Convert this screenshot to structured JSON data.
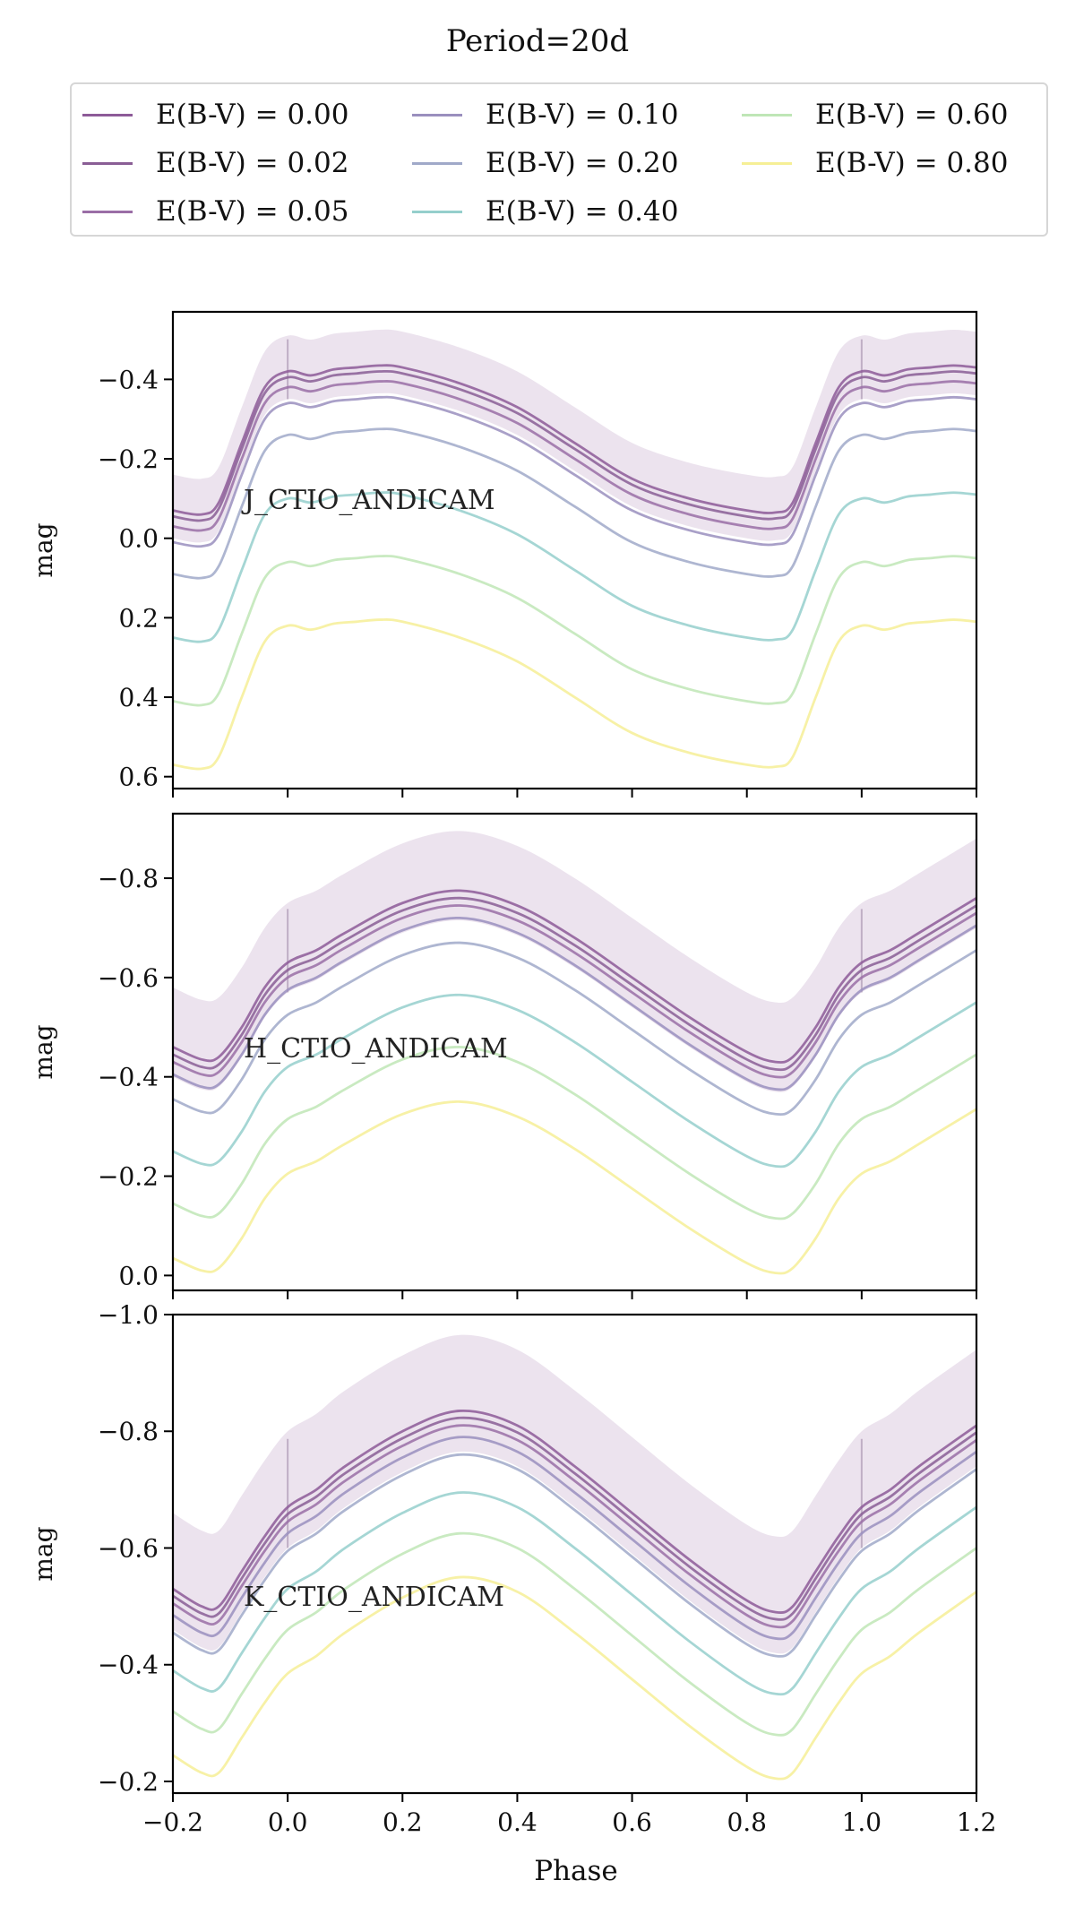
{
  "figure": {
    "title": "Period=20d",
    "xlabel": "Phase"
  },
  "legend": [
    {
      "label": "E(B-V) = 0.00",
      "color": "#8d5b98"
    },
    {
      "label": "E(B-V) = 0.02",
      "color": "#8a5e95"
    },
    {
      "label": "E(B-V) = 0.05",
      "color": "#9a6ea6"
    },
    {
      "label": "E(B-V) = 0.10",
      "color": "#9a8fbe"
    },
    {
      "label": "E(B-V) = 0.20",
      "color": "#a0a9c9"
    },
    {
      "label": "E(B-V) = 0.40",
      "color": "#95cfcc"
    },
    {
      "label": "E(B-V) = 0.60",
      "color": "#bfe6b6"
    },
    {
      "label": "E(B-V) = 0.80",
      "color": "#f6ef96"
    }
  ],
  "chart_data": [
    {
      "type": "line",
      "title": "J_CTIO_ANDICAM",
      "xlabel": "Phase",
      "ylabel": "mag",
      "xlim": [
        -0.2,
        1.2
      ],
      "ylim": [
        0.63,
        -0.57
      ],
      "yticks": [
        -0.4,
        -0.2,
        0.0,
        0.2,
        0.4,
        0.6
      ],
      "ytick_labels": [
        "−0.4",
        "−0.2",
        "0.0",
        "0.2",
        "0.4",
        "0.6"
      ],
      "base_curve": {
        "x": [
          -0.2,
          -0.15,
          -0.12,
          -0.08,
          -0.04,
          0.0,
          0.04,
          0.08,
          0.12,
          0.16,
          0.2,
          0.3,
          0.4,
          0.5,
          0.6,
          0.7,
          0.8,
          0.85,
          0.88,
          0.92,
          0.96,
          1.0,
          1.04,
          1.08,
          1.12,
          1.16,
          1.2
        ],
        "y": [
          -0.07,
          -0.06,
          -0.09,
          -0.24,
          -0.38,
          -0.42,
          -0.41,
          -0.425,
          -0.43,
          -0.435,
          -0.43,
          -0.39,
          -0.33,
          -0.24,
          -0.15,
          -0.1,
          -0.07,
          -0.065,
          -0.09,
          -0.24,
          -0.38,
          -0.42,
          -0.41,
          -0.425,
          -0.43,
          -0.435,
          -0.43
        ]
      },
      "offsets": [
        0.0,
        0.015,
        0.04,
        0.08,
        0.16,
        0.32,
        0.48,
        0.64
      ],
      "band": {
        "upper_offset": -0.09,
        "lower_offset": 0.07
      }
    },
    {
      "type": "line",
      "title": "H_CTIO_ANDICAM",
      "xlabel": "Phase",
      "ylabel": "mag",
      "xlim": [
        -0.2,
        1.2
      ],
      "ylim": [
        0.03,
        -0.93
      ],
      "yticks": [
        -0.8,
        -0.6,
        -0.4,
        -0.2,
        0.0
      ],
      "ytick_labels": [
        "−0.8",
        "−0.6",
        "−0.4",
        "−0.2",
        "0.0"
      ],
      "base_curve": {
        "x": [
          -0.2,
          -0.15,
          -0.12,
          -0.08,
          -0.04,
          0.0,
          0.05,
          0.1,
          0.2,
          0.3,
          0.4,
          0.5,
          0.6,
          0.7,
          0.8,
          0.85,
          0.88,
          0.92,
          0.96,
          1.0,
          1.05,
          1.1,
          1.2
        ],
        "y": [
          -0.46,
          -0.435,
          -0.44,
          -0.5,
          -0.58,
          -0.63,
          -0.655,
          -0.69,
          -0.75,
          -0.775,
          -0.745,
          -0.68,
          -0.6,
          -0.52,
          -0.45,
          -0.43,
          -0.44,
          -0.5,
          -0.58,
          -0.63,
          -0.655,
          -0.69,
          -0.76
        ]
      },
      "offsets": [
        0.0,
        0.015,
        0.03,
        0.055,
        0.105,
        0.21,
        0.315,
        0.425
      ],
      "band": {
        "upper_offset": -0.12,
        "lower_offset": 0.06
      }
    },
    {
      "type": "line",
      "title": "K_CTIO_ANDICAM",
      "xlabel": "Phase",
      "ylabel": "mag",
      "xlim": [
        -0.2,
        1.2
      ],
      "ylim": [
        -0.18,
        -1.0
      ],
      "yticks": [
        -1.0,
        -0.8,
        -0.6,
        -0.4,
        -0.2
      ],
      "ytick_labels": [
        "−1.0",
        "−0.8",
        "−0.6",
        "−0.4",
        "−0.2"
      ],
      "xticks": [
        -0.2,
        0.0,
        0.2,
        0.4,
        0.6,
        0.8,
        1.0,
        1.2
      ],
      "xtick_labels": [
        "−0.2",
        "0.0",
        "0.2",
        "0.4",
        "0.6",
        "0.8",
        "1.0",
        "1.2"
      ],
      "base_curve": {
        "x": [
          -0.2,
          -0.15,
          -0.12,
          -0.08,
          -0.04,
          0.0,
          0.05,
          0.1,
          0.2,
          0.3,
          0.4,
          0.5,
          0.6,
          0.7,
          0.8,
          0.85,
          0.88,
          0.92,
          0.96,
          1.0,
          1.05,
          1.1,
          1.2
        ],
        "y": [
          -0.53,
          -0.5,
          -0.5,
          -0.56,
          -0.62,
          -0.67,
          -0.7,
          -0.74,
          -0.8,
          -0.835,
          -0.81,
          -0.74,
          -0.66,
          -0.58,
          -0.51,
          -0.49,
          -0.5,
          -0.56,
          -0.62,
          -0.67,
          -0.7,
          -0.74,
          -0.81
        ]
      },
      "offsets": [
        0.0,
        0.012,
        0.025,
        0.045,
        0.075,
        0.14,
        0.21,
        0.285
      ],
      "band": {
        "upper_offset": -0.13,
        "lower_offset": 0.07
      }
    }
  ]
}
